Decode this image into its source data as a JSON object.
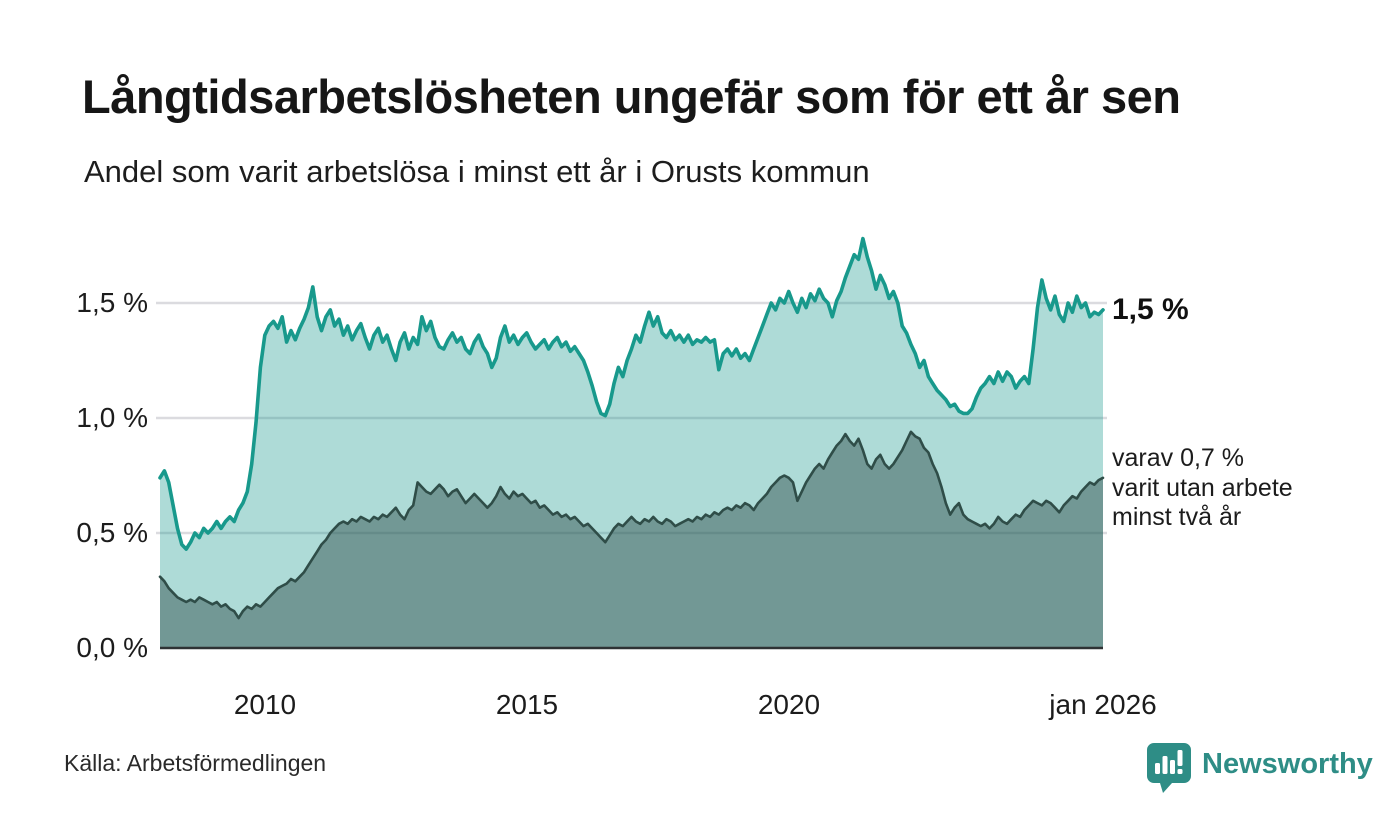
{
  "header": {
    "title": "Långtidsarbetslösheten ungefär som för ett år sen",
    "subtitle": "Andel som varit arbetslösa i minst ett år i Orusts kommun"
  },
  "chart_data": {
    "type": "area",
    "title": "Långtidsarbetslösheten ungefär som för ett år sen",
    "subtitle": "Andel som varit arbetslösa i minst ett år i Orusts kommun",
    "unit": "%",
    "frequency": "monthly",
    "x_start": "jan 2008",
    "x_end": "jan 2026",
    "ylim": [
      0,
      1.8
    ],
    "grid": true,
    "grid_color": "#dbdbdf",
    "axis_color": "#2e3234",
    "y_ticks": [
      {
        "label": "0,0 %",
        "value": 0.0
      },
      {
        "label": "0,5 %",
        "value": 0.5
      },
      {
        "label": "1,0 %",
        "value": 1.0
      },
      {
        "label": "1,5 %",
        "value": 1.5
      }
    ],
    "x_ticks": [
      {
        "label": "2010",
        "year": 2010
      },
      {
        "label": "2015",
        "year": 2015
      },
      {
        "label": "2020",
        "year": 2020
      },
      {
        "label": "jan 2026",
        "year": 2026
      }
    ],
    "series": [
      {
        "name": "Andel som varit arbetslösa i minst ett år",
        "color": "#18998c",
        "fill": "rgba(24,153,140,0.35)",
        "line_width": 3.6,
        "values": [
          0.74,
          0.77,
          0.72,
          0.62,
          0.52,
          0.45,
          0.43,
          0.46,
          0.5,
          0.48,
          0.52,
          0.5,
          0.52,
          0.55,
          0.52,
          0.55,
          0.57,
          0.55,
          0.6,
          0.63,
          0.68,
          0.8,
          0.98,
          1.22,
          1.36,
          1.4,
          1.42,
          1.39,
          1.44,
          1.33,
          1.38,
          1.34,
          1.39,
          1.43,
          1.48,
          1.57,
          1.44,
          1.38,
          1.44,
          1.47,
          1.4,
          1.43,
          1.36,
          1.4,
          1.34,
          1.38,
          1.41,
          1.35,
          1.3,
          1.36,
          1.39,
          1.33,
          1.36,
          1.3,
          1.25,
          1.33,
          1.37,
          1.3,
          1.35,
          1.32,
          1.44,
          1.38,
          1.42,
          1.35,
          1.31,
          1.3,
          1.34,
          1.37,
          1.33,
          1.35,
          1.3,
          1.28,
          1.33,
          1.36,
          1.31,
          1.28,
          1.22,
          1.26,
          1.35,
          1.4,
          1.33,
          1.36,
          1.32,
          1.35,
          1.37,
          1.33,
          1.3,
          1.32,
          1.34,
          1.3,
          1.33,
          1.35,
          1.31,
          1.33,
          1.29,
          1.31,
          1.28,
          1.25,
          1.2,
          1.14,
          1.07,
          1.02,
          1.01,
          1.06,
          1.15,
          1.22,
          1.18,
          1.25,
          1.3,
          1.36,
          1.33,
          1.4,
          1.46,
          1.4,
          1.44,
          1.37,
          1.35,
          1.38,
          1.34,
          1.36,
          1.33,
          1.36,
          1.32,
          1.34,
          1.33,
          1.35,
          1.33,
          1.34,
          1.21,
          1.28,
          1.3,
          1.27,
          1.3,
          1.26,
          1.28,
          1.25,
          1.3,
          1.35,
          1.4,
          1.45,
          1.5,
          1.47,
          1.52,
          1.5,
          1.55,
          1.5,
          1.46,
          1.52,
          1.48,
          1.54,
          1.51,
          1.56,
          1.52,
          1.5,
          1.44,
          1.51,
          1.55,
          1.61,
          1.66,
          1.71,
          1.69,
          1.78,
          1.7,
          1.64,
          1.56,
          1.62,
          1.58,
          1.52,
          1.55,
          1.5,
          1.4,
          1.37,
          1.32,
          1.28,
          1.22,
          1.25,
          1.18,
          1.15,
          1.12,
          1.1,
          1.08,
          1.05,
          1.06,
          1.03,
          1.02,
          1.02,
          1.04,
          1.09,
          1.13,
          1.15,
          1.18,
          1.15,
          1.2,
          1.16,
          1.2,
          1.18,
          1.13,
          1.16,
          1.18,
          1.15,
          1.3,
          1.48,
          1.6,
          1.52,
          1.47,
          1.53,
          1.45,
          1.42,
          1.5,
          1.46,
          1.53,
          1.48,
          1.5,
          1.44,
          1.46,
          1.45,
          1.47
        ]
      },
      {
        "name": "varav utan arbete minst två år",
        "color": "#2f4d48",
        "fill": "rgba(42,72,68,0.45)",
        "line_width": 2.6,
        "values": [
          0.31,
          0.29,
          0.26,
          0.24,
          0.22,
          0.21,
          0.2,
          0.21,
          0.2,
          0.22,
          0.21,
          0.2,
          0.19,
          0.2,
          0.18,
          0.19,
          0.17,
          0.16,
          0.13,
          0.16,
          0.18,
          0.17,
          0.19,
          0.18,
          0.2,
          0.22,
          0.24,
          0.26,
          0.27,
          0.28,
          0.3,
          0.29,
          0.31,
          0.33,
          0.36,
          0.39,
          0.42,
          0.45,
          0.47,
          0.5,
          0.52,
          0.54,
          0.55,
          0.54,
          0.56,
          0.55,
          0.57,
          0.56,
          0.55,
          0.57,
          0.56,
          0.58,
          0.57,
          0.59,
          0.61,
          0.58,
          0.56,
          0.6,
          0.62,
          0.72,
          0.7,
          0.68,
          0.67,
          0.69,
          0.71,
          0.69,
          0.66,
          0.68,
          0.69,
          0.66,
          0.63,
          0.65,
          0.67,
          0.65,
          0.63,
          0.61,
          0.63,
          0.66,
          0.7,
          0.67,
          0.65,
          0.68,
          0.66,
          0.67,
          0.65,
          0.63,
          0.64,
          0.61,
          0.62,
          0.6,
          0.58,
          0.59,
          0.57,
          0.58,
          0.56,
          0.57,
          0.55,
          0.53,
          0.54,
          0.52,
          0.5,
          0.48,
          0.46,
          0.49,
          0.52,
          0.54,
          0.53,
          0.55,
          0.57,
          0.55,
          0.54,
          0.56,
          0.55,
          0.57,
          0.55,
          0.54,
          0.56,
          0.55,
          0.53,
          0.54,
          0.55,
          0.56,
          0.55,
          0.57,
          0.56,
          0.58,
          0.57,
          0.59,
          0.58,
          0.6,
          0.61,
          0.6,
          0.62,
          0.61,
          0.63,
          0.62,
          0.6,
          0.63,
          0.65,
          0.67,
          0.7,
          0.72,
          0.74,
          0.75,
          0.74,
          0.72,
          0.64,
          0.68,
          0.72,
          0.75,
          0.78,
          0.8,
          0.78,
          0.82,
          0.85,
          0.88,
          0.9,
          0.93,
          0.9,
          0.88,
          0.91,
          0.86,
          0.8,
          0.78,
          0.82,
          0.84,
          0.8,
          0.78,
          0.8,
          0.83,
          0.86,
          0.9,
          0.94,
          0.92,
          0.91,
          0.87,
          0.85,
          0.8,
          0.76,
          0.7,
          0.63,
          0.58,
          0.61,
          0.63,
          0.58,
          0.56,
          0.55,
          0.54,
          0.53,
          0.54,
          0.52,
          0.54,
          0.57,
          0.55,
          0.54,
          0.56,
          0.58,
          0.57,
          0.6,
          0.62,
          0.64,
          0.63,
          0.62,
          0.64,
          0.63,
          0.61,
          0.59,
          0.62,
          0.64,
          0.66,
          0.65,
          0.68,
          0.7,
          0.72,
          0.71,
          0.73,
          0.74
        ]
      }
    ],
    "annotations": {
      "end_label_main": "1,5 %",
      "end_label_sub_lines": [
        "varav 0,7 %",
        "varit utan arbete",
        "minst två år"
      ]
    }
  },
  "footer": {
    "source": "Källa: Arbetsförmedlingen",
    "brand": "Newsworthy",
    "brand_color": "#2e8d86"
  }
}
